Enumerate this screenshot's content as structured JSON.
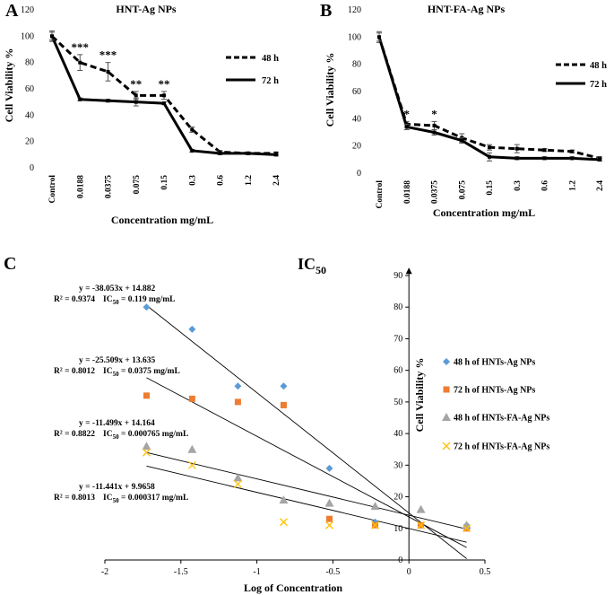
{
  "chart_data": [
    {
      "type": "line",
      "panel_label": "A",
      "title": "HNT-Ag NPs",
      "xlabel": "Concentration mg/mL",
      "ylabel": "Cell Viability %",
      "ylim": [
        0,
        120
      ],
      "yticks": [
        "0",
        "20",
        "40",
        "60",
        "80",
        "100",
        "120"
      ],
      "categories": [
        "Control",
        "0.0188",
        "0.0375",
        "0.075",
        "0.15",
        "0.3",
        "0.6",
        "1.2",
        "2.4"
      ],
      "series": [
        {
          "name": "48 h",
          "style": "dashed",
          "values": [
            100,
            80,
            73,
            55,
            55,
            29,
            12,
            11,
            11
          ],
          "errors": [
            4,
            6,
            7,
            3,
            3,
            2,
            1,
            1,
            1
          ]
        },
        {
          "name": "72 h",
          "style": "solid",
          "values": [
            100,
            52,
            51,
            50,
            49,
            13,
            11,
            11,
            10
          ],
          "errors": [
            3,
            1,
            1,
            3,
            1,
            1,
            1,
            1,
            1
          ]
        }
      ],
      "significance": [
        {
          "category": "0.0188",
          "label": "***"
        },
        {
          "category": "0.0375",
          "label": "***"
        },
        {
          "category": "0.075",
          "label": "**"
        },
        {
          "category": "0.15",
          "label": "**"
        }
      ]
    },
    {
      "type": "line",
      "panel_label": "B",
      "title": "HNT-FA-Ag NPs",
      "xlabel": "Concentration mg/mL",
      "ylabel": "Cell Viability %",
      "ylim": [
        0,
        120
      ],
      "yticks": [
        "0",
        "20",
        "40",
        "60",
        "80",
        "100",
        "120"
      ],
      "categories": [
        "Control",
        "0.0188",
        "0.0375",
        "0.075",
        "0.15",
        "0.3",
        "0.6",
        "1.2",
        "2.4"
      ],
      "series": [
        {
          "name": "48 h",
          "style": "dashed",
          "values": [
            100,
            36,
            35,
            26,
            19,
            18,
            17,
            16,
            11
          ],
          "errors": [
            4,
            2,
            3,
            3,
            2,
            3,
            1,
            1,
            1
          ]
        },
        {
          "name": "72 h",
          "style": "solid",
          "values": [
            100,
            34,
            30,
            24,
            12,
            11,
            11,
            11,
            10
          ],
          "errors": [
            3,
            2,
            2,
            2,
            3,
            1,
            1,
            1,
            1
          ]
        }
      ],
      "significance": [
        {
          "category": "0.0188",
          "label": "*"
        },
        {
          "category": "0.0375",
          "label": "*"
        }
      ]
    },
    {
      "type": "scatter",
      "panel_label": "C",
      "title_main": "IC",
      "title_sub": "50",
      "xlabel": "Log of Concentration",
      "ylabel": "Cell Viability %",
      "xlim": [
        -2,
        0.5
      ],
      "ylim": [
        0,
        90
      ],
      "xticks": [
        "-2",
        "-1.5",
        "-1",
        "-0.5",
        "0",
        "0.5"
      ],
      "yticks": [
        "0",
        "10",
        "20",
        "30",
        "40",
        "50",
        "60",
        "70",
        "80",
        "90"
      ],
      "x": [
        -1.726,
        -1.426,
        -1.125,
        -0.824,
        -0.523,
        -0.222,
        0.079,
        0.38
      ],
      "series": [
        {
          "name": "48 h of HNTs-Ag NPs",
          "marker": "diamond",
          "color": "#5b9bd5",
          "values": [
            80,
            73,
            55,
            55,
            29,
            12,
            11,
            11
          ]
        },
        {
          "name": "72 h of HNTs-Ag NPs",
          "marker": "square",
          "color": "#ed7d31",
          "values": [
            52,
            51,
            50,
            49,
            13,
            11,
            11,
            10
          ]
        },
        {
          "name": "48 h of HNTs-FA-Ag NPs",
          "marker": "triangle",
          "color": "#a5a5a5",
          "values": [
            36,
            35,
            26,
            19,
            18,
            17,
            16,
            11
          ]
        },
        {
          "name": "72 h of HNTs-FA-Ag NPs",
          "marker": "x",
          "color": "#ffc000",
          "values": [
            34,
            30,
            24,
            12,
            11,
            11,
            11,
            10
          ]
        }
      ],
      "trendlines": [
        {
          "slope": -38.053,
          "intercept": 14.882,
          "x_from": -1.726,
          "x_to": 0.38
        },
        {
          "slope": -25.509,
          "intercept": 13.635,
          "x_from": -1.726,
          "x_to": 0.38
        },
        {
          "slope": -11.499,
          "intercept": 14.164,
          "x_from": -1.726,
          "x_to": 0.38
        },
        {
          "slope": -11.441,
          "intercept": 9.9658,
          "x_from": -1.726,
          "x_to": 0.38
        }
      ],
      "annotations": [
        {
          "equation": "y = -38.053x + 14.882",
          "r2": "R² = 0.9374",
          "ic_prefix": "IC",
          "ic_sub": "50",
          "ic_value": " = 0.119 mg/mL"
        },
        {
          "equation": "y = -25.509x + 13.635",
          "r2": "R² = 0.8012",
          "ic_prefix": "IC",
          "ic_sub": "50",
          "ic_value": " = 0.0375 mg/mL"
        },
        {
          "equation": "y = -11.499x + 14.164",
          "r2": "R² = 0.8822",
          "ic_prefix": "IC",
          "ic_sub": "50",
          "ic_value": " = 0.000765 mg/mL"
        },
        {
          "equation": "y = -11.441x + 9.9658",
          "r2": "R² = 0.8013",
          "ic_prefix": "IC",
          "ic_sub": "50",
          "ic_value": " = 0.000317 mg/mL"
        }
      ]
    }
  ]
}
